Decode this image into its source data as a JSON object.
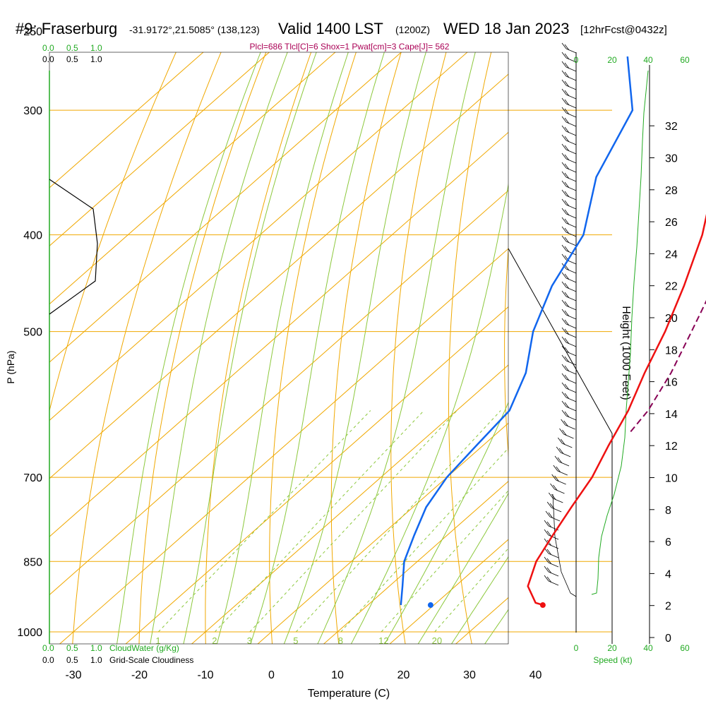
{
  "header": {
    "station": "#9: Fraserburg",
    "coords": "-31.9172°,21.5085° (138,123)",
    "valid": "Valid 1400 LST",
    "zulu": "(1200Z)",
    "date": "WED 18 Jan 2023",
    "forecast": "[12hrFcst@0432z]"
  },
  "indices": "Plcl=686 Tlcl[C]=6 Shox=1 Pwat[cm]=3 Cape[J]= 562",
  "colors": {
    "temperature": "#ee1111",
    "dewpoint": "#1166ee",
    "parcel": "#880055",
    "isotherm": "#f0a800",
    "dry_adiabat": "#f0a800",
    "moist_adiabat": "#8cc83c",
    "mixing_ratio": "#8cc83c",
    "cloud": "#22aa22",
    "indices_text": "#aa0055"
  },
  "legend": {
    "cloudwater_label": "CloudWater (g/Kg)",
    "cloudiness_label": "Grid-Scale Cloudiness",
    "scale_values": [
      "0.0",
      "0.5",
      "1.0"
    ],
    "speed_label": "Speed (kt)",
    "speed_ticks": [
      "0",
      "20",
      "40",
      "60"
    ]
  },
  "chart_data": {
    "type": "skew-t log-p sounding",
    "xlabel": "Temperature (C)",
    "ylabel": "P (hPa)",
    "y2label": "Height (1000 Feet)",
    "x_ticks": [
      -30,
      -20,
      -10,
      0,
      10,
      20,
      30,
      40
    ],
    "p_ticks": [
      250,
      300,
      400,
      500,
      700,
      850,
      1000
    ],
    "height_ticks": [
      0,
      2,
      4,
      6,
      8,
      10,
      12,
      14,
      16,
      18,
      20,
      22,
      24,
      26,
      28,
      30,
      32
    ],
    "isotherm_labels": [
      -30,
      -20,
      -10,
      0,
      10,
      20,
      30
    ],
    "mixing_ratio_labels": [
      1,
      2,
      3,
      5,
      8,
      12,
      20
    ],
    "temperature_profile": [
      {
        "p": 940,
        "t": 36.5
      },
      {
        "p": 935,
        "t": 35
      },
      {
        "p": 900,
        "t": 31
      },
      {
        "p": 850,
        "t": 28
      },
      {
        "p": 800,
        "t": 26
      },
      {
        "p": 750,
        "t": 24
      },
      {
        "p": 700,
        "t": 22
      },
      {
        "p": 650,
        "t": 19
      },
      {
        "p": 600,
        "t": 16
      },
      {
        "p": 550,
        "t": 12
      },
      {
        "p": 500,
        "t": 8
      },
      {
        "p": 450,
        "t": 3
      },
      {
        "p": 400,
        "t": -3
      },
      {
        "p": 350,
        "t": -11
      },
      {
        "p": 300,
        "t": -19
      },
      {
        "p": 265,
        "t": -25
      }
    ],
    "dewpoint_profile": [
      {
        "p": 940,
        "td": 19.5
      },
      {
        "p": 940,
        "td": 15
      },
      {
        "p": 900,
        "td": 12
      },
      {
        "p": 850,
        "td": 8
      },
      {
        "p": 800,
        "td": 5
      },
      {
        "p": 750,
        "td": 2
      },
      {
        "p": 700,
        "td": 0
      },
      {
        "p": 650,
        "td": -1
      },
      {
        "p": 600,
        "td": -2
      },
      {
        "p": 550,
        "td": -6
      },
      {
        "p": 500,
        "td": -12
      },
      {
        "p": 450,
        "td": -17
      },
      {
        "p": 400,
        "td": -21
      },
      {
        "p": 350,
        "td": -29
      },
      {
        "p": 300,
        "td": -35
      },
      {
        "p": 265,
        "td": -45
      }
    ],
    "parcel_profile": [
      {
        "p": 630,
        "t": 20
      },
      {
        "p": 600,
        "t": 19
      },
      {
        "p": 550,
        "t": 16
      },
      {
        "p": 500,
        "t": 12
      },
      {
        "p": 450,
        "t": 7.5
      },
      {
        "p": 400,
        "t": 2
      },
      {
        "p": 350,
        "t": -5
      },
      {
        "p": 300,
        "t": -13
      },
      {
        "p": 265,
        "t": -20
      }
    ],
    "surface_temperature": 36.5,
    "surface_dewpoint": 19.5,
    "wind_barbs_note": "wind barbs shown along right side from 1000 to 250 hPa"
  }
}
